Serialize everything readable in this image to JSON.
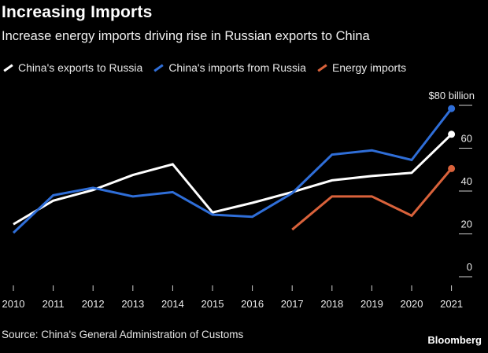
{
  "header": {
    "title": "Increasing Imports",
    "subtitle": "Increase energy imports driving rise in Russian exports to China"
  },
  "footer": {
    "source": "Source: China's General Administration of Customs",
    "brand": "Bloomberg"
  },
  "chart_data": {
    "type": "line",
    "title": "Increasing Imports",
    "subtitle": "Increase energy imports driving rise in Russian exports to China",
    "x": [
      "2010",
      "2011",
      "2012",
      "2013",
      "2014",
      "2015",
      "2016",
      "2017",
      "2018",
      "2019",
      "2020",
      "2021"
    ],
    "y_tick_labels": [
      "0",
      "20",
      "40",
      "60",
      "$80 billion"
    ],
    "y_ticks": [
      0,
      20,
      40,
      60,
      80
    ],
    "ylim": [
      0,
      80
    ],
    "legend_position": "top-left",
    "grid": false,
    "series": [
      {
        "name": "China's exports to Russia",
        "color": "#ffffff",
        "values": [
          24.5,
          35.5,
          40.5,
          47.5,
          52.5,
          30.0,
          34.5,
          39.5,
          45.0,
          47.0,
          48.5,
          66.5
        ]
      },
      {
        "name": "China's imports from Russia",
        "color": "#2f6ed8",
        "values": [
          20.5,
          38.0,
          41.5,
          37.5,
          39.5,
          29.0,
          28.0,
          39.0,
          57.0,
          59.0,
          54.5,
          78.5
        ]
      },
      {
        "name": "Energy imports",
        "color": "#d9623b",
        "values": [
          null,
          null,
          null,
          null,
          null,
          null,
          null,
          22.0,
          37.5,
          37.5,
          28.5,
          50.5
        ]
      }
    ]
  }
}
